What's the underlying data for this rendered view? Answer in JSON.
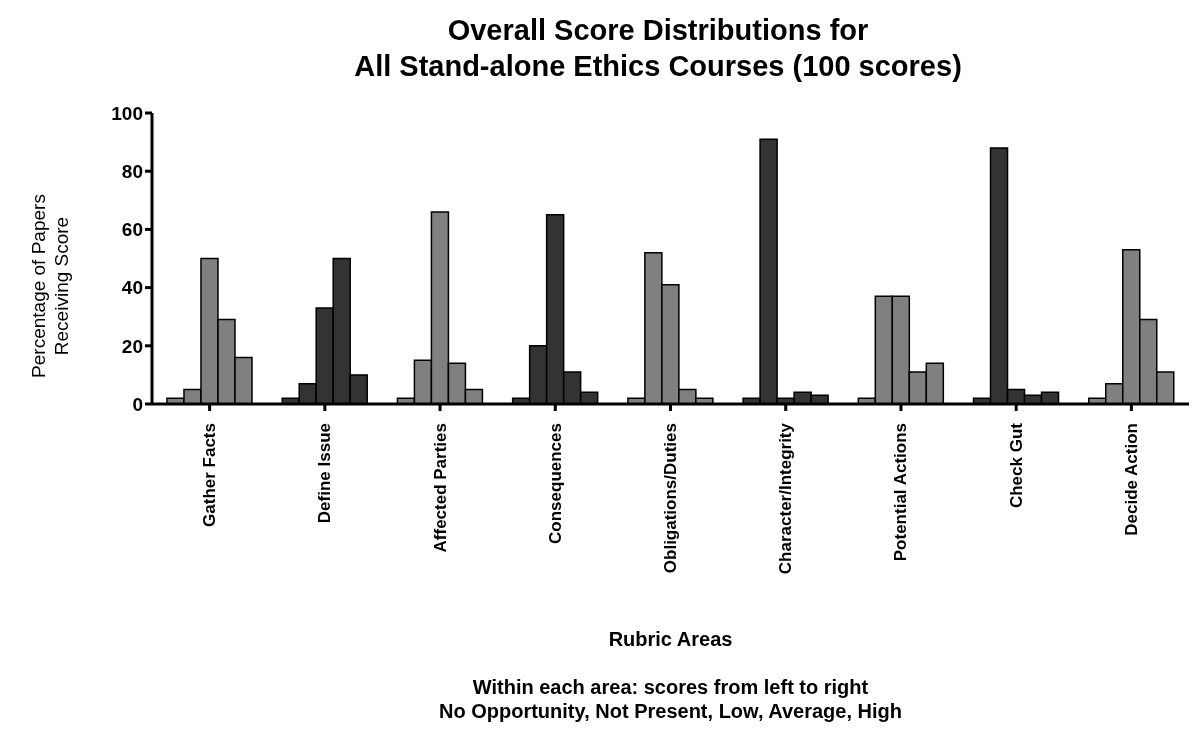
{
  "chart_data": {
    "type": "bar",
    "title": "Overall Score Distributions for\nAll Stand-alone Ethics Courses (100 scores)",
    "xlabel": "Rubric Areas",
    "ylabel": "Percentage of Papers\nReceiving Score",
    "annotations": [
      "Within each area: scores from left to right",
      "No Opportunity, Not Present, Low, Average, High"
    ],
    "categories": [
      "Gather Facts",
      "Define Issue",
      "Affected Parties",
      "Consequences",
      "Obligations/Duties",
      "Character/Integrity",
      "Potential Actions",
      "Check Gut",
      "Decide Action"
    ],
    "series": [
      {
        "colors": [
          "#808080",
          "#333333",
          "#808080",
          "#333333",
          "#808080",
          "#333333",
          "#808080",
          "#333333",
          "#808080"
        ],
        "values": [
          2,
          2,
          2,
          2,
          2,
          2,
          2,
          2,
          2
        ]
      },
      {
        "colors": [
          "#808080",
          "#333333",
          "#808080",
          "#333333",
          "#808080",
          "#333333",
          "#808080",
          "#333333",
          "#808080"
        ],
        "values": [
          5,
          7,
          15,
          20,
          52,
          91,
          37,
          88,
          7
        ]
      },
      {
        "colors": [
          "#808080",
          "#333333",
          "#808080",
          "#333333",
          "#808080",
          "#333333",
          "#808080",
          "#333333",
          "#808080"
        ],
        "values": [
          50,
          33,
          66,
          65,
          41,
          2,
          37,
          5,
          53
        ]
      },
      {
        "colors": [
          "#808080",
          "#333333",
          "#808080",
          "#333333",
          "#808080",
          "#333333",
          "#808080",
          "#333333",
          "#808080"
        ],
        "values": [
          29,
          50,
          14,
          11,
          5,
          4,
          11,
          3,
          29
        ]
      },
      {
        "colors": [
          "#808080",
          "#333333",
          "#808080",
          "#333333",
          "#808080",
          "#333333",
          "#808080",
          "#333333",
          "#808080"
        ],
        "values": [
          16,
          10,
          5,
          4,
          2,
          3,
          14,
          4,
          11
        ]
      }
    ],
    "ylim": [
      0,
      100
    ],
    "yticks": [
      0,
      20,
      40,
      60,
      80,
      100
    ],
    "grid": false,
    "legend": false
  }
}
